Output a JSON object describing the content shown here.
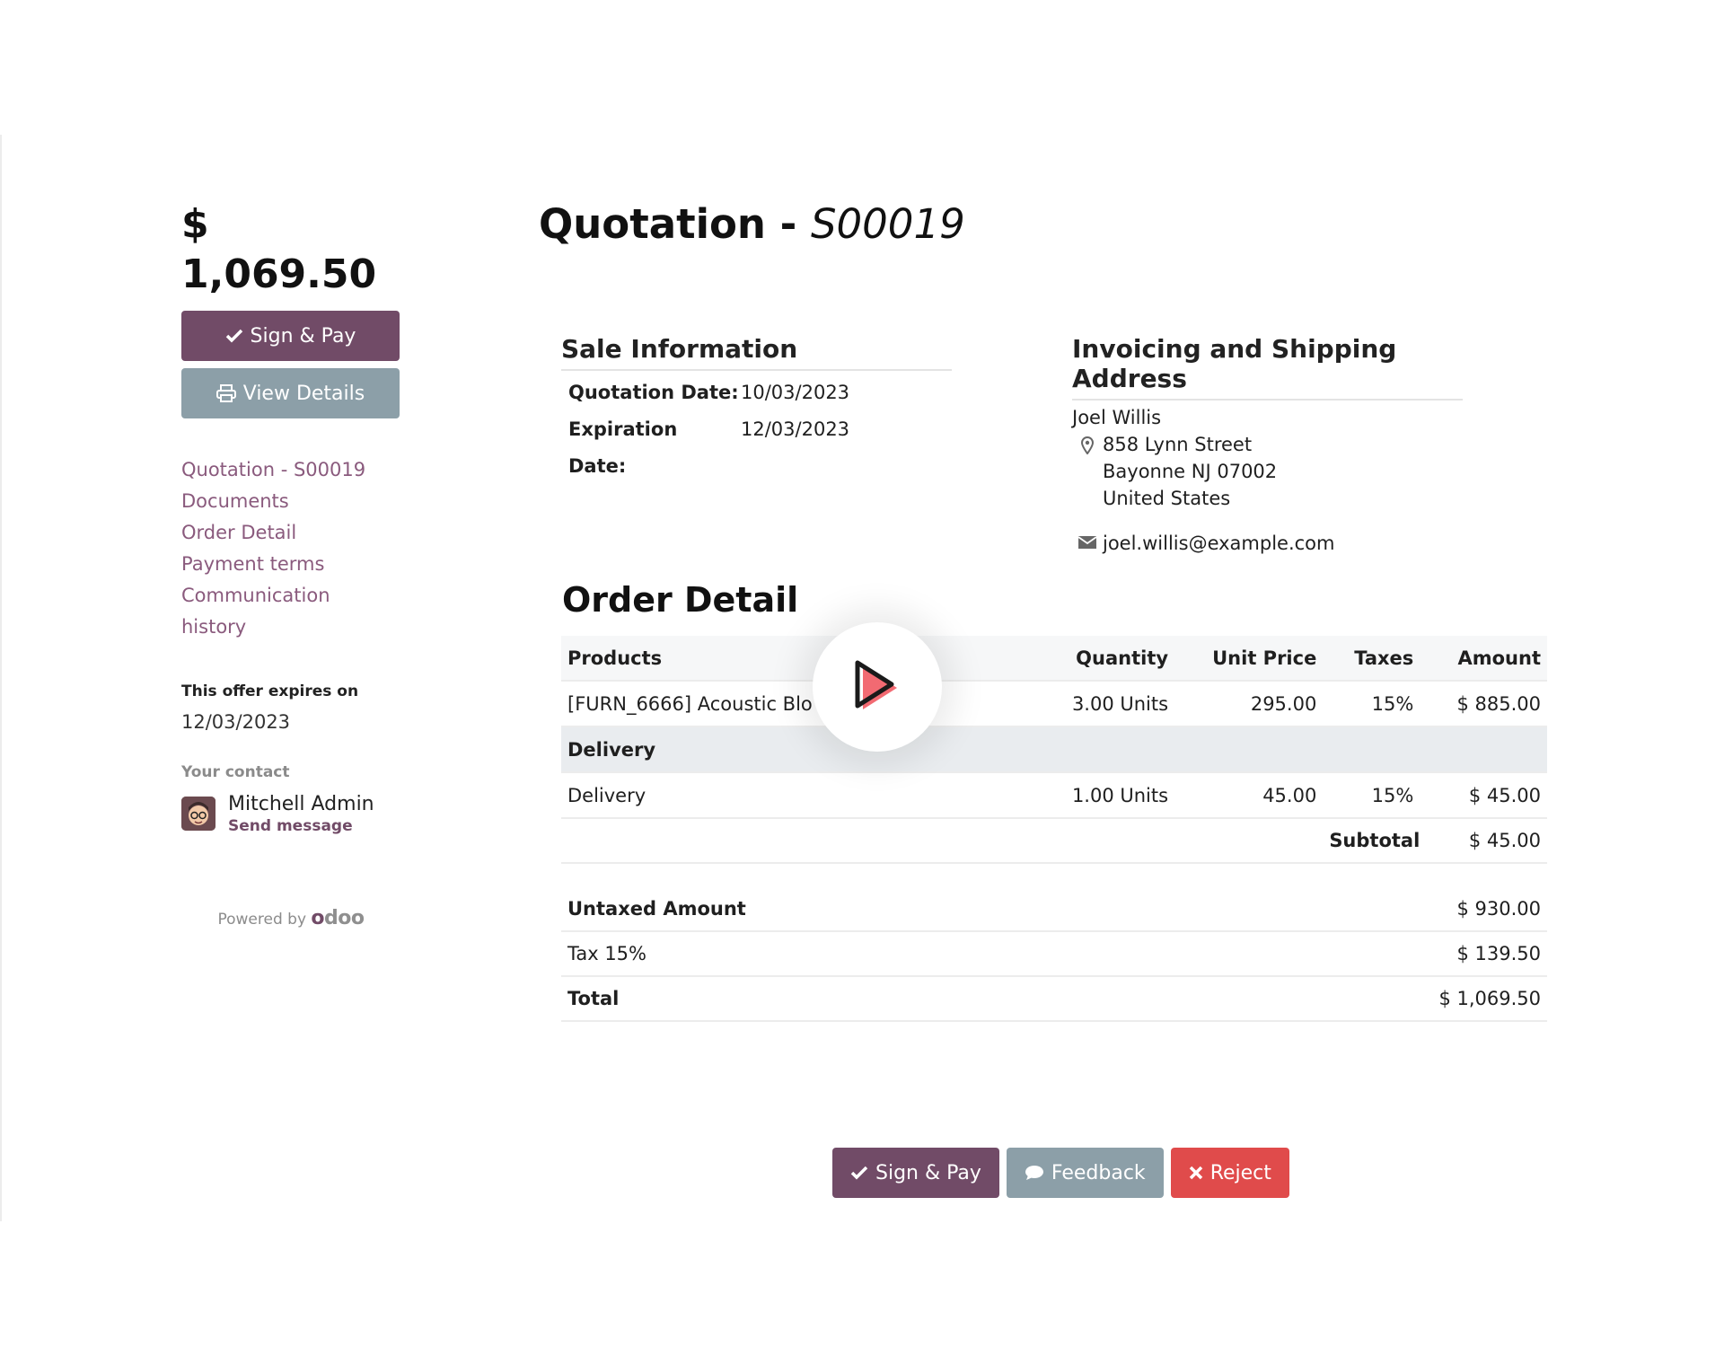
{
  "sidebar": {
    "total": "$ 1,069.50",
    "sign_pay_label": "Sign & Pay",
    "view_details_label": "View Details",
    "nav": [
      {
        "label": "Quotation - S00019"
      },
      {
        "label": "Documents"
      },
      {
        "label": "Order Detail"
      },
      {
        "label": "Payment terms"
      },
      {
        "label": "Communication history"
      }
    ],
    "expires_label": "This offer expires on",
    "expires_date": "12/03/2023",
    "contact_label": "Your contact",
    "contact_name": "Mitchell Admin",
    "send_message": "Send message",
    "powered_by": "Powered by",
    "brand": "odoo"
  },
  "main": {
    "title_prefix": "Quotation - ",
    "title_ref": "S00019",
    "sale_info": {
      "heading": "Sale Information",
      "quotation_date_label": "Quotation Date:",
      "quotation_date": "10/03/2023",
      "expiration_date_label": "Expiration Date:",
      "expiration_date": "12/03/2023"
    },
    "address": {
      "heading": "Invoicing and Shipping Address",
      "name": "Joel Willis",
      "street": "858 Lynn Street",
      "city": "Bayonne NJ 07002",
      "country": "United States",
      "email": "joel.willis@example.com"
    },
    "order": {
      "heading": "Order Detail",
      "columns": [
        "Products",
        "Quantity",
        "Unit Price",
        "Taxes",
        "Amount"
      ],
      "lines": [
        {
          "product": "[FURN_6666] Acoustic Blo",
          "quantity": "3.00 Units",
          "unit_price": "295.00",
          "taxes": "15%",
          "amount": "$ 885.00"
        }
      ],
      "section": "Delivery",
      "section_lines": [
        {
          "product": "Delivery",
          "quantity": "1.00 Units",
          "unit_price": "45.00",
          "taxes": "15%",
          "amount": "$ 45.00"
        }
      ],
      "subtotal_label": "Subtotal",
      "subtotal": "$ 45.00",
      "untaxed_label": "Untaxed Amount",
      "untaxed": "$ 930.00",
      "tax_label": "Tax 15%",
      "tax": "$ 139.50",
      "total_label": "Total",
      "total": "$ 1,069.50"
    }
  },
  "footer": {
    "sign_pay_label": "Sign & Pay",
    "feedback_label": "Feedback",
    "reject_label": "Reject"
  },
  "colors": {
    "primary": "#714b67",
    "secondary": "#8c9fa8",
    "danger": "#e04b4b",
    "link": "#8a5a7d"
  }
}
